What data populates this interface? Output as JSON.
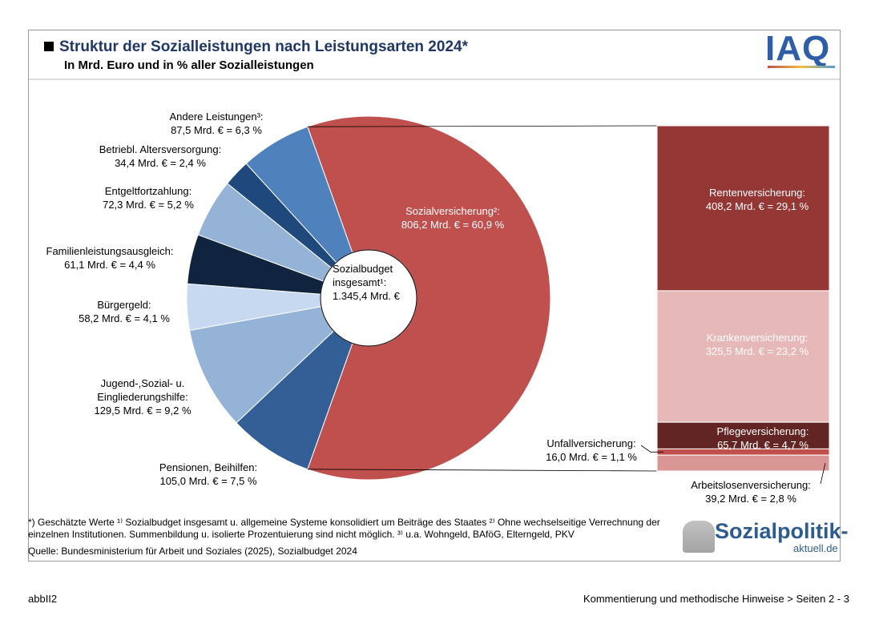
{
  "chart_data": {
    "type": "pie",
    "title": "Struktur der Sozialleistungen nach Leistungsarten 2024*",
    "subtitle": "In Mrd. Euro und in % aller Sozialleistungen",
    "center_label": [
      "Sozialbudget",
      "insgesamt¹:",
      "1.345,4 Mrd. €"
    ],
    "categories": [
      "Sozialversicherung²:",
      "Pensionen, Beihilfen:",
      "Jugend-,Sozial- u. Eingliederungshilfe:",
      "Bürgergeld:",
      "Familienleistungsausgleich:",
      "Entgeltfortzahlung:",
      "Betriebl. Altersversorgung:",
      "Andere Leistungen³:"
    ],
    "values": [
      60.9,
      7.5,
      9.2,
      4.1,
      4.4,
      5.2,
      2.4,
      6.3
    ],
    "value_labels": [
      "806,2 Mrd. € = 60,9 %",
      "105,0 Mrd. € = 7,5 %",
      "129,5 Mrd. € = 9,2 %",
      "58,2 Mrd. € = 4,1 %",
      "61,1 Mrd. € = 4,4 %",
      "72,3 Mrd. € = 5,2 %",
      "34,4 Mrd. € = 2,4 %",
      "87,5 Mrd. € = 6,3 %"
    ],
    "colors": [
      "#c0504d",
      "#335f96",
      "#95b3d7",
      "#c6d9f1",
      "#10243f",
      "#95b3d7",
      "#1f497d",
      "#4f81bd"
    ],
    "breakdown": {
      "type": "stacked-bar",
      "categories": [
        "Rentenversicherung:",
        "Krankenversicherung:",
        "Pflegeversicherung:",
        "Unfallversicherung:",
        "Arbeitslosenversicherung:"
      ],
      "values": [
        29.1,
        23.2,
        4.7,
        1.1,
        2.8
      ],
      "value_labels": [
        "408,2 Mrd. € = 29,1 %",
        "325,5 Mrd. € = 23,2 %",
        "65,7 Mrd. € = 4,7 %",
        "16,0 Mrd. € = 1,1 %",
        "39,2 Mrd. € = 2,8 %"
      ],
      "colors": [
        "#953735",
        "#e6b9b8",
        "#632523",
        "#c0504d",
        "#d99694"
      ]
    }
  },
  "notes": "*) Geschätzte Werte ¹⁾ Sozialbudget insgesamt u. allgemeine Systeme konsolidiert um Beiträge des Staates ²⁾ Ohne wechselseitige Verrechnung der einzelnen Institutionen. Summenbildung u. isolierte Prozentuierung sind nicht möglich. ³⁾ u.a. Wohngeld, BAföG, Elterngeld, PKV",
  "source": "Quelle: Bundesministerium für Arbeit und Soziales (2025), Sozialbudget 2024",
  "logos": {
    "iaq": "IAQ",
    "site": "Sozialpolitik-",
    "site_sub": "aktuell.de"
  },
  "footer": {
    "left": "abbII2",
    "right": "Kommentierung und methodische Hinweise > Seiten 2 - 3"
  }
}
